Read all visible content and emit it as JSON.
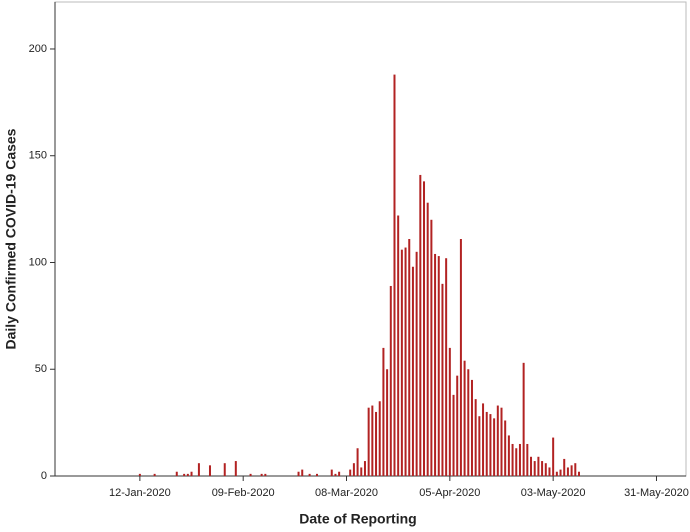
{
  "chart_data": {
    "type": "bar",
    "x_label": "Date of Reporting",
    "y_label": "Daily Confirmed COVID-19 Cases",
    "color": "#b22222",
    "xlim": [
      "2019-12-20",
      "2020-06-08"
    ],
    "xticks": [
      {
        "value": "2020-01-12",
        "label": "12-Jan-2020"
      },
      {
        "value": "2020-02-09",
        "label": "09-Feb-2020"
      },
      {
        "value": "2020-03-08",
        "label": "08-Mar-2020"
      },
      {
        "value": "2020-04-05",
        "label": "05-Apr-2020"
      },
      {
        "value": "2020-05-03",
        "label": "03-May-2020"
      },
      {
        "value": "2020-05-31",
        "label": "31-May-2020"
      }
    ],
    "ylim": [
      0,
      222
    ],
    "yticks": [
      0,
      50,
      100,
      150,
      200
    ],
    "x": [
      "2020-01-12",
      "2020-01-16",
      "2020-01-22",
      "2020-01-24",
      "2020-01-25",
      "2020-01-26",
      "2020-01-28",
      "2020-01-31",
      "2020-02-04",
      "2020-02-07",
      "2020-02-11",
      "2020-02-14",
      "2020-02-15",
      "2020-02-24",
      "2020-02-25",
      "2020-02-27",
      "2020-02-29",
      "2020-03-04",
      "2020-03-05",
      "2020-03-06",
      "2020-03-09",
      "2020-03-10",
      "2020-03-11",
      "2020-03-12",
      "2020-03-13",
      "2020-03-14",
      "2020-03-15",
      "2020-03-16",
      "2020-03-17",
      "2020-03-18",
      "2020-03-19",
      "2020-03-20",
      "2020-03-21",
      "2020-03-22",
      "2020-03-23",
      "2020-03-24",
      "2020-03-25",
      "2020-03-26",
      "2020-03-27",
      "2020-03-28",
      "2020-03-29",
      "2020-03-30",
      "2020-03-31",
      "2020-04-01",
      "2020-04-02",
      "2020-04-03",
      "2020-04-04",
      "2020-04-05",
      "2020-04-06",
      "2020-04-07",
      "2020-04-08",
      "2020-04-09",
      "2020-04-10",
      "2020-04-11",
      "2020-04-12",
      "2020-04-13",
      "2020-04-14",
      "2020-04-15",
      "2020-04-16",
      "2020-04-17",
      "2020-04-18",
      "2020-04-19",
      "2020-04-20",
      "2020-04-21",
      "2020-04-22",
      "2020-04-23",
      "2020-04-24",
      "2020-04-25",
      "2020-04-26",
      "2020-04-27",
      "2020-04-28",
      "2020-04-29",
      "2020-04-30",
      "2020-05-01",
      "2020-05-02",
      "2020-05-03",
      "2020-05-04",
      "2020-05-05",
      "2020-05-06",
      "2020-05-07",
      "2020-05-08",
      "2020-05-09",
      "2020-05-10"
    ],
    "values": [
      1,
      1,
      2,
      1,
      1,
      2,
      6,
      5,
      6,
      7,
      1,
      1,
      1,
      2,
      3,
      1,
      1,
      3,
      1,
      2,
      3,
      6,
      13,
      4,
      7,
      32,
      33,
      30,
      35,
      60,
      50,
      89,
      188,
      122,
      106,
      107,
      111,
      98,
      105,
      141,
      138,
      128,
      120,
      104,
      103,
      90,
      102,
      60,
      38,
      47,
      111,
      54,
      50,
      45,
      36,
      28,
      34,
      30,
      29,
      27,
      33,
      32,
      26,
      19,
      15,
      13,
      15,
      53,
      15,
      9,
      7,
      9,
      7,
      6,
      4,
      18,
      2,
      3,
      8,
      4,
      5,
      6,
      2
    ]
  }
}
